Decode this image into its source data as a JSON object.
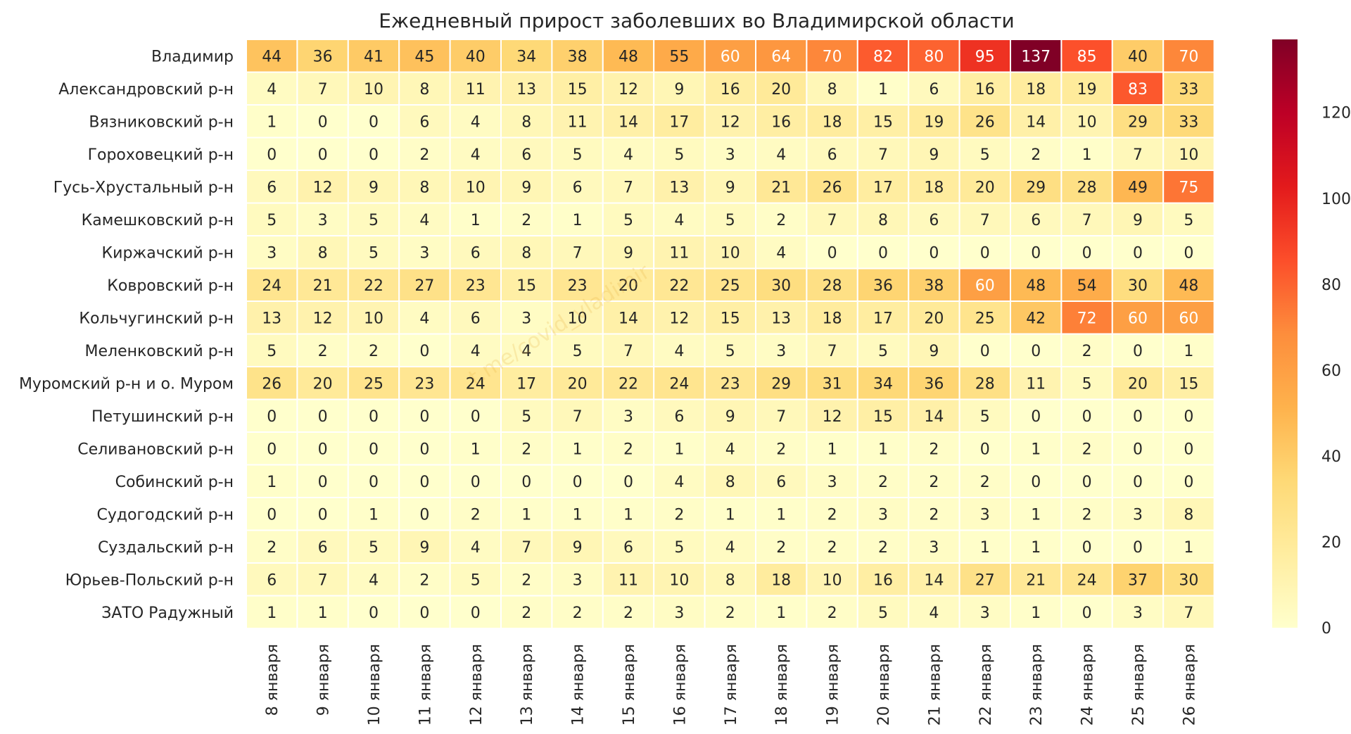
{
  "chart_data": {
    "type": "heatmap",
    "title": "Ежедневный прирост заболевших во Владимирской области",
    "xlabel": "",
    "ylabel": "",
    "x": [
      "8 января",
      "9 января",
      "10 января",
      "11 января",
      "12 января",
      "13 января",
      "14 января",
      "15 января",
      "16 января",
      "17 января",
      "18 января",
      "19 января",
      "20 января",
      "21 января",
      "22 января",
      "23 января",
      "24 января",
      "25 января",
      "26 января"
    ],
    "y": [
      "Владимир",
      "Александровский р-н",
      "Вязниковский р-н",
      "Гороховецкий р-н",
      "Гусь-Хрустальный р-н",
      "Камешковский р-н",
      "Киржачский р-н",
      "Ковровский р-н",
      "Кольчугинский р-н",
      "Меленковский р-н",
      "Муромский р-н и о. Муром",
      "Петушинский р-н",
      "Селивановский р-н",
      "Собинский р-н",
      "Судогодский р-н",
      "Суздальский р-н",
      "Юрьев-Польский р-н",
      "ЗАТО Радужный"
    ],
    "values": [
      [
        44,
        36,
        41,
        45,
        40,
        34,
        38,
        48,
        55,
        60,
        64,
        70,
        82,
        80,
        95,
        137,
        85,
        40,
        70
      ],
      [
        4,
        7,
        10,
        8,
        11,
        13,
        15,
        12,
        9,
        16,
        20,
        8,
        1,
        6,
        16,
        18,
        19,
        83,
        33
      ],
      [
        1,
        0,
        0,
        6,
        4,
        8,
        11,
        14,
        17,
        12,
        16,
        18,
        15,
        19,
        26,
        14,
        10,
        29,
        33
      ],
      [
        0,
        0,
        0,
        2,
        4,
        6,
        5,
        4,
        5,
        3,
        4,
        6,
        7,
        9,
        5,
        2,
        1,
        7,
        10
      ],
      [
        6,
        12,
        9,
        8,
        10,
        9,
        6,
        7,
        13,
        9,
        21,
        26,
        17,
        18,
        20,
        29,
        28,
        49,
        75
      ],
      [
        5,
        3,
        5,
        4,
        1,
        2,
        1,
        5,
        4,
        5,
        2,
        7,
        8,
        6,
        7,
        6,
        7,
        9,
        5
      ],
      [
        3,
        8,
        5,
        3,
        6,
        8,
        7,
        9,
        11,
        10,
        4,
        0,
        0,
        0,
        0,
        0,
        0,
        0,
        0
      ],
      [
        24,
        21,
        22,
        27,
        23,
        15,
        23,
        20,
        22,
        25,
        30,
        28,
        36,
        38,
        60,
        48,
        54,
        30,
        48
      ],
      [
        13,
        12,
        10,
        4,
        6,
        3,
        10,
        14,
        12,
        15,
        13,
        18,
        17,
        20,
        25,
        42,
        72,
        60,
        60
      ],
      [
        5,
        2,
        2,
        0,
        4,
        4,
        5,
        7,
        4,
        5,
        3,
        7,
        5,
        9,
        0,
        0,
        2,
        0,
        1
      ],
      [
        26,
        20,
        25,
        23,
        24,
        17,
        20,
        22,
        24,
        23,
        29,
        31,
        34,
        36,
        28,
        11,
        5,
        20,
        15
      ],
      [
        0,
        0,
        0,
        0,
        0,
        5,
        7,
        3,
        6,
        9,
        7,
        12,
        15,
        14,
        5,
        0,
        0,
        0,
        0
      ],
      [
        0,
        0,
        0,
        0,
        1,
        2,
        1,
        2,
        1,
        4,
        2,
        1,
        1,
        2,
        0,
        1,
        2,
        0,
        0
      ],
      [
        1,
        0,
        0,
        0,
        0,
        0,
        0,
        0,
        4,
        8,
        6,
        3,
        2,
        2,
        2,
        0,
        0,
        0,
        0
      ],
      [
        0,
        0,
        1,
        0,
        2,
        1,
        1,
        1,
        2,
        1,
        1,
        2,
        3,
        2,
        3,
        1,
        2,
        3,
        8
      ],
      [
        2,
        6,
        5,
        9,
        4,
        7,
        9,
        6,
        5,
        4,
        2,
        2,
        2,
        3,
        1,
        1,
        0,
        0,
        1
      ],
      [
        6,
        7,
        4,
        2,
        5,
        2,
        3,
        11,
        10,
        8,
        18,
        10,
        16,
        14,
        27,
        21,
        24,
        37,
        30
      ],
      [
        1,
        1,
        0,
        0,
        0,
        2,
        2,
        2,
        3,
        2,
        1,
        2,
        5,
        4,
        3,
        1,
        0,
        3,
        7
      ]
    ],
    "vmin": 0,
    "vmax": 137,
    "colormap": "YlOrRd",
    "colorbar_ticks": [
      0,
      20,
      40,
      60,
      80,
      100,
      120
    ],
    "watermark": "t.me/covid_vladimir",
    "colors": {
      "cell_border": "#ffffff",
      "text_dark": "#262626",
      "text_light": "#ffffff",
      "colormap_stops": [
        "#ffffcc",
        "#ffeda0",
        "#fed976",
        "#feb24c",
        "#fd8d3c",
        "#fc4e2a",
        "#e31a1c",
        "#bd0026",
        "#800026"
      ]
    }
  }
}
